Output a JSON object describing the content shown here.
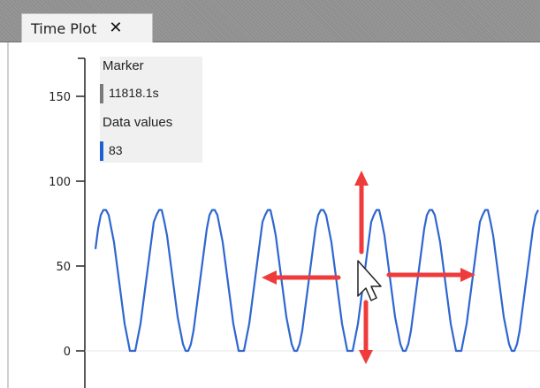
{
  "tab": {
    "label": "Time Plot",
    "close_glyph": "✕",
    "close_icon": "close-icon"
  },
  "legend": {
    "marker_title": "Marker",
    "marker_value": "11818.1s",
    "marker_color": "#7a7a7a",
    "data_title": "Data values",
    "data_value": "83",
    "data_color": "#1f5fd6"
  },
  "cursor": {
    "icon": "move-cursor-icon",
    "arrow_color": "#ef3b3b"
  },
  "chart_data": {
    "type": "line",
    "ylim": [
      -15,
      170
    ],
    "yticks": [
      0,
      50,
      100,
      150
    ],
    "grid": false,
    "series": [
      {
        "color": "#2f66d0",
        "amplitude": 42,
        "offset": 41.5,
        "peak": 83,
        "trough": 0,
        "cycles_visible": 9
      }
    ]
  }
}
